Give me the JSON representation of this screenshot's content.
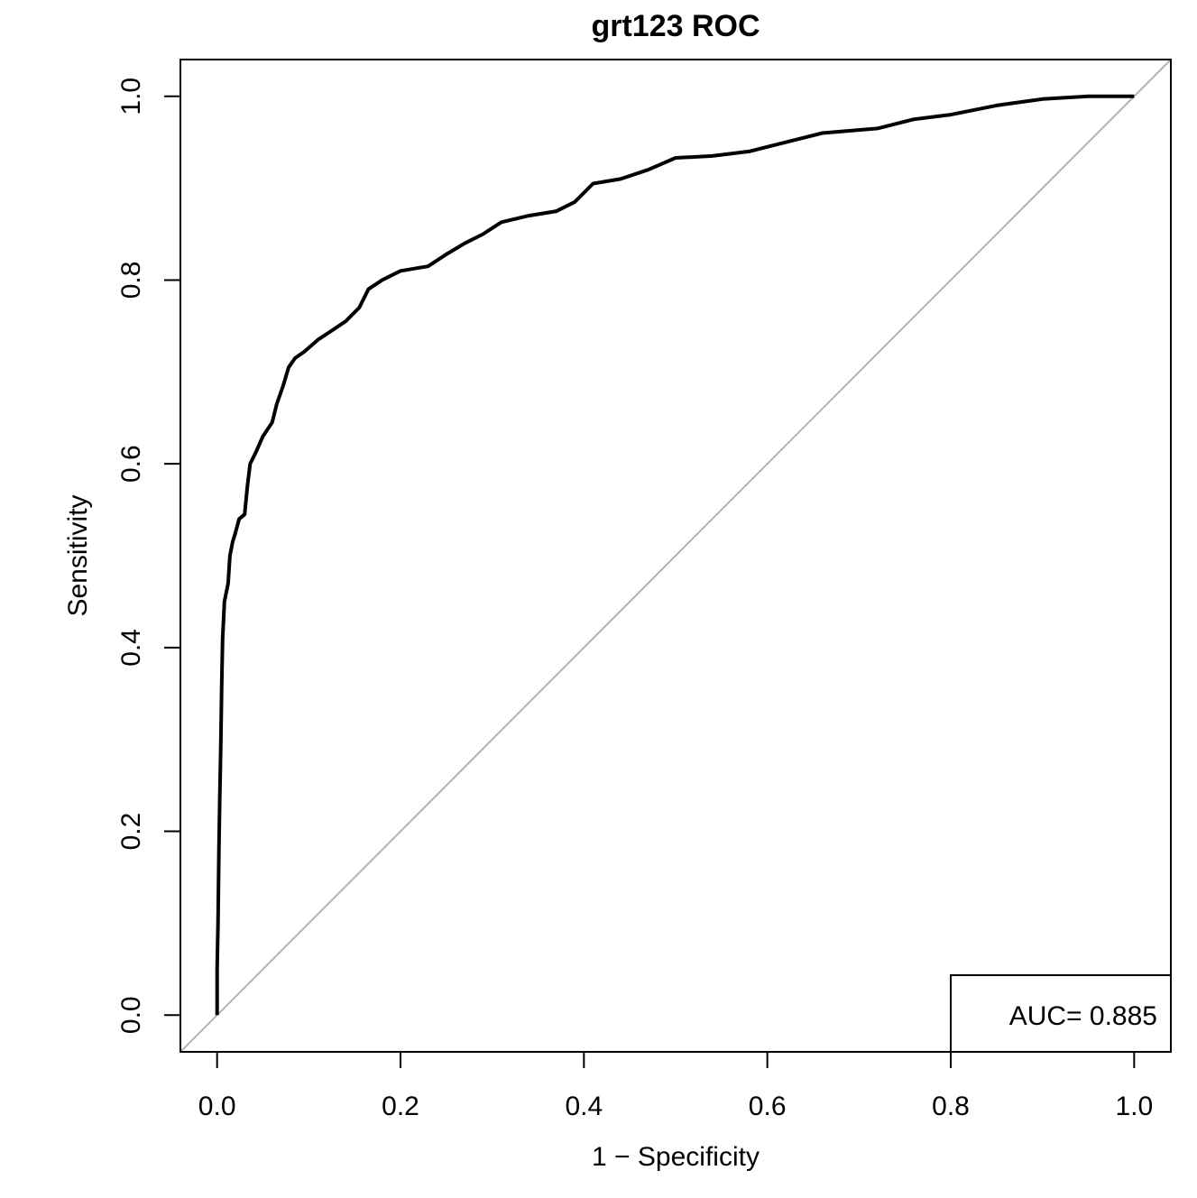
{
  "chart_data": {
    "type": "line",
    "title": "grt123 ROC",
    "xlabel": "1 − Specificity",
    "ylabel": "Sensitivity",
    "xlim": [
      -0.04,
      1.04
    ],
    "ylim": [
      -0.04,
      1.04
    ],
    "x_ticks": [
      "0.0",
      "0.2",
      "0.4",
      "0.6",
      "0.8",
      "1.0"
    ],
    "y_ticks": [
      "0.0",
      "0.2",
      "0.4",
      "0.6",
      "0.8",
      "1.0"
    ],
    "grid": false,
    "reference_line": {
      "from": [
        -0.04,
        -0.04
      ],
      "to": [
        1.04,
        1.04
      ],
      "color": "#b3b3b3"
    },
    "legend": {
      "placement": "bottom-right",
      "text": "AUC= 0.885"
    },
    "series": [
      {
        "color": "#000000",
        "points": [
          [
            0.0,
            0.0
          ],
          [
            0.0,
            0.05
          ],
          [
            0.001,
            0.1
          ],
          [
            0.002,
            0.18
          ],
          [
            0.003,
            0.24
          ],
          [
            0.004,
            0.29
          ],
          [
            0.005,
            0.36
          ],
          [
            0.006,
            0.41
          ],
          [
            0.008,
            0.45
          ],
          [
            0.012,
            0.47
          ],
          [
            0.014,
            0.5
          ],
          [
            0.017,
            0.515
          ],
          [
            0.02,
            0.525
          ],
          [
            0.024,
            0.54
          ],
          [
            0.03,
            0.545
          ],
          [
            0.033,
            0.575
          ],
          [
            0.036,
            0.6
          ],
          [
            0.042,
            0.612
          ],
          [
            0.05,
            0.63
          ],
          [
            0.06,
            0.645
          ],
          [
            0.065,
            0.665
          ],
          [
            0.072,
            0.685
          ],
          [
            0.078,
            0.705
          ],
          [
            0.085,
            0.715
          ],
          [
            0.095,
            0.722
          ],
          [
            0.11,
            0.735
          ],
          [
            0.125,
            0.745
          ],
          [
            0.14,
            0.755
          ],
          [
            0.155,
            0.77
          ],
          [
            0.165,
            0.79
          ],
          [
            0.18,
            0.8
          ],
          [
            0.2,
            0.81
          ],
          [
            0.23,
            0.815
          ],
          [
            0.25,
            0.828
          ],
          [
            0.27,
            0.84
          ],
          [
            0.29,
            0.85
          ],
          [
            0.31,
            0.863
          ],
          [
            0.34,
            0.87
          ],
          [
            0.37,
            0.875
          ],
          [
            0.39,
            0.885
          ],
          [
            0.41,
            0.905
          ],
          [
            0.44,
            0.91
          ],
          [
            0.47,
            0.92
          ],
          [
            0.5,
            0.933
          ],
          [
            0.54,
            0.935
          ],
          [
            0.58,
            0.94
          ],
          [
            0.62,
            0.95
          ],
          [
            0.66,
            0.96
          ],
          [
            0.72,
            0.965
          ],
          [
            0.76,
            0.975
          ],
          [
            0.8,
            0.98
          ],
          [
            0.85,
            0.99
          ],
          [
            0.9,
            0.997
          ],
          [
            0.95,
            1.0
          ],
          [
            1.0,
            1.0
          ]
        ]
      }
    ]
  }
}
